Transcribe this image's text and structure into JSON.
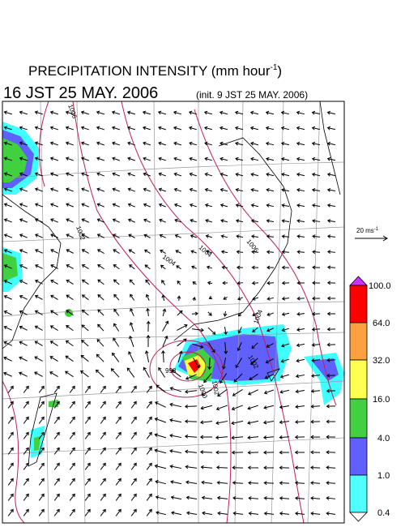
{
  "header": {
    "title": "PRECIPITATION INTENSITY (mm hour",
    "title_sup": "-1",
    "title_end": ")",
    "time": "16 JST 25 MAY. 2006",
    "init": "(init. 9 JST 25 MAY. 2006)"
  },
  "vector_scale": {
    "label": "20 ms",
    "sup": "-1"
  },
  "contour_labels": [
    "1006",
    "1002",
    "1004",
    "1006",
    "1004",
    "1004",
    "1002",
    "998",
    "1000",
    "1002"
  ],
  "legend": {
    "labels": [
      "100.0",
      "64.0",
      "32.0",
      "16.0",
      "4.0",
      "1.0",
      "0.4"
    ]
  }
}
